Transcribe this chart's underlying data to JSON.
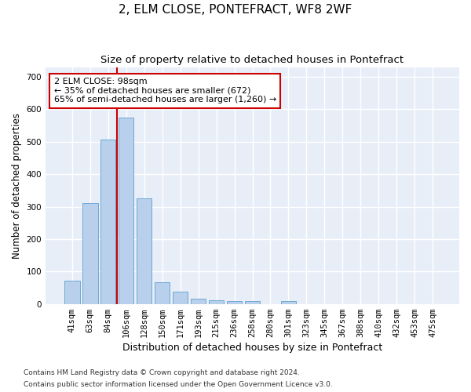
{
  "title": "2, ELM CLOSE, PONTEFRACT, WF8 2WF",
  "subtitle": "Size of property relative to detached houses in Pontefract",
  "xlabel": "Distribution of detached houses by size in Pontefract",
  "ylabel": "Number of detached properties",
  "categories": [
    "41sqm",
    "63sqm",
    "84sqm",
    "106sqm",
    "128sqm",
    "150sqm",
    "171sqm",
    "193sqm",
    "215sqm",
    "236sqm",
    "258sqm",
    "280sqm",
    "301sqm",
    "323sqm",
    "345sqm",
    "367sqm",
    "388sqm",
    "410sqm",
    "432sqm",
    "453sqm",
    "475sqm"
  ],
  "values": [
    72,
    312,
    507,
    575,
    325,
    67,
    37,
    15,
    11,
    10,
    10,
    0,
    8,
    0,
    0,
    0,
    0,
    0,
    0,
    0,
    0
  ],
  "bar_color": "#b8d0eb",
  "bar_edgecolor": "#6fa8d4",
  "vline_x": 2.5,
  "vline_color": "#cc0000",
  "annotation_text": "2 ELM CLOSE: 98sqm\n← 35% of detached houses are smaller (672)\n65% of semi-detached houses are larger (1,260) →",
  "annotation_box_facecolor": "white",
  "annotation_box_edgecolor": "#cc0000",
  "ylim": [
    0,
    730
  ],
  "yticks": [
    0,
    100,
    200,
    300,
    400,
    500,
    600,
    700
  ],
  "background_color": "#e8eef8",
  "grid_color": "white",
  "title_fontsize": 11,
  "subtitle_fontsize": 9.5,
  "xlabel_fontsize": 9,
  "ylabel_fontsize": 8.5,
  "tick_fontsize": 7.5,
  "annotation_fontsize": 8,
  "footnote1": "Contains HM Land Registry data © Crown copyright and database right 2024.",
  "footnote2": "Contains public sector information licensed under the Open Government Licence v3.0.",
  "footnote_fontsize": 6.5
}
